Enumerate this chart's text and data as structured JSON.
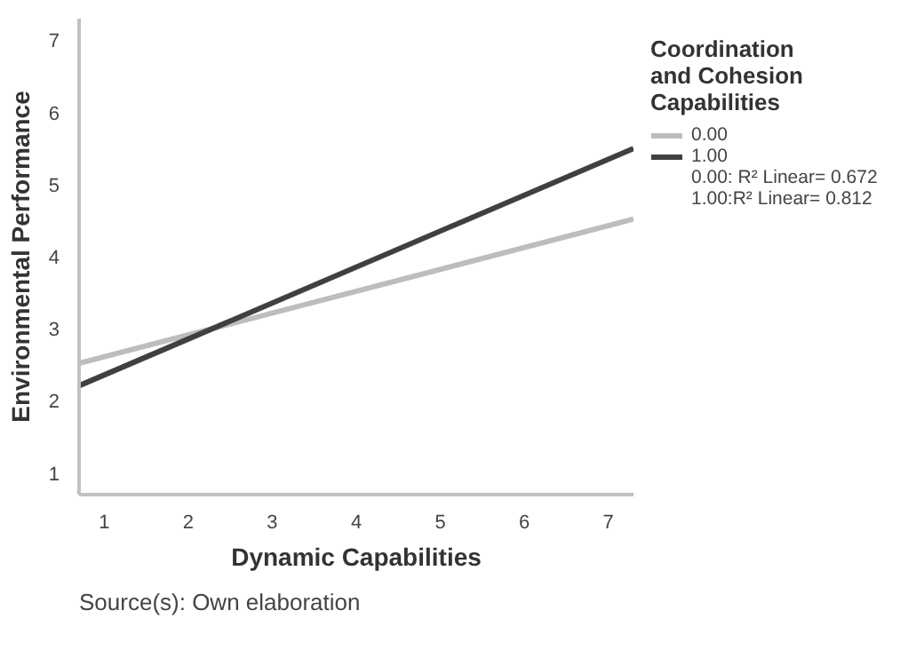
{
  "chart_data": {
    "type": "line",
    "xlabel": "Dynamic Capabilities",
    "ylabel": "Environmental Performance",
    "legend_title": "Coordination and Cohesion Capabilities",
    "x": [
      0.7,
      7.3
    ],
    "xlim": [
      0.7,
      7.3
    ],
    "ylim": [
      0.7,
      7.3
    ],
    "xticks": [
      1,
      2,
      3,
      4,
      5,
      6,
      7
    ],
    "yticks": [
      1,
      2,
      3,
      4,
      5,
      6,
      7
    ],
    "series": [
      {
        "name": "0.00",
        "color": "#bdbdbd",
        "values": [
          2.52,
          4.52
        ]
      },
      {
        "name": "1.00",
        "color": "#404040",
        "values": [
          2.21,
          5.5
        ]
      }
    ],
    "legend": "top right",
    "grid": false,
    "annotations": [
      "0.00: R² Linear= 0.672",
      "1.00:R² Linear= 0.812",
      "Source(s): Own elaboration"
    ]
  }
}
